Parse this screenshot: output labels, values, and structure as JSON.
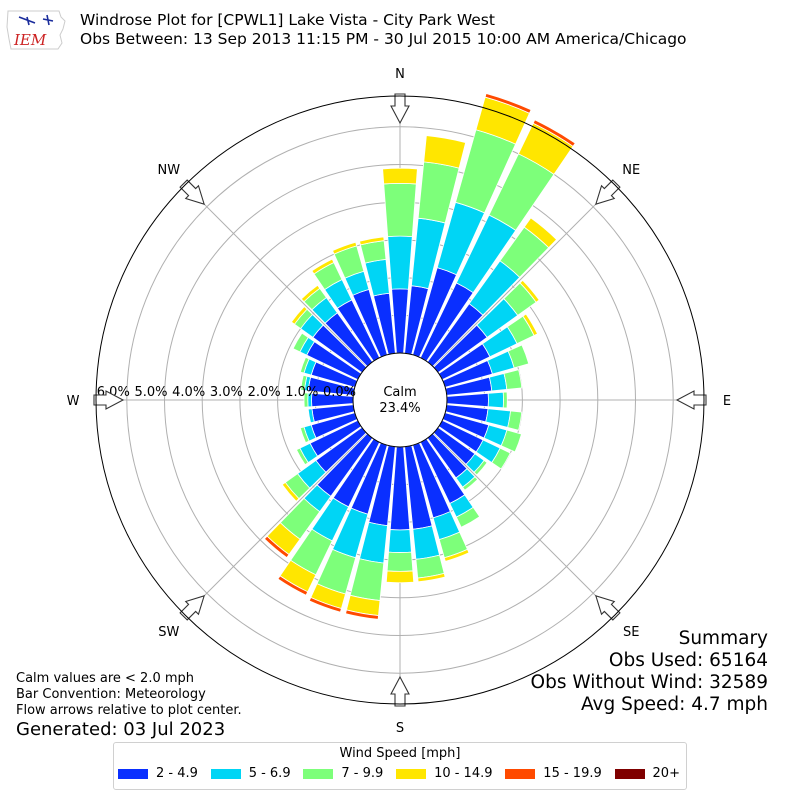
{
  "logo": {
    "text": "IEM",
    "color": "#cc2222",
    "accent": "#1a2c9c"
  },
  "header": {
    "title": "Windrose Plot for [CPWL1] Lake Vista - City Park West",
    "subtitle": "Obs Between: 13 Sep 2013 11:15 PM - 30 Jul 2015 10:00 AM America/Chicago"
  },
  "notes": {
    "line1": "Calm values are < 2.0 mph",
    "line2": "Bar Convention: Meteorology",
    "line3": "Flow arrows relative to plot center.",
    "generated": "Generated: 03 Jul 2023"
  },
  "summary": {
    "heading": "Summary",
    "obs_used": "Obs Used: 65164",
    "obs_without_wind": "Obs Without Wind: 32589",
    "avg_speed": "Avg Speed: 4.7 mph"
  },
  "chart_data": {
    "type": "windrose",
    "calm_label": "Calm",
    "calm_value": "23.4%",
    "direction_labels": [
      "N",
      "NE",
      "E",
      "SE",
      "S",
      "SW",
      "W",
      "NW"
    ],
    "radial_ticks": [
      "0.0%",
      "1.0%",
      "2.0%",
      "3.0%",
      "4.0%",
      "5.0%",
      "6.0%"
    ],
    "rmax": 6.9,
    "legend_title": "Wind Speed [mph]",
    "speed_bins": [
      {
        "label": "2 - 4.9",
        "color": "#0a2fff"
      },
      {
        "label": "5 - 6.9",
        "color": "#00d5f5"
      },
      {
        "label": "7 - 9.9",
        "color": "#7dff7a"
      },
      {
        "label": "10 - 14.9",
        "color": "#ffe600"
      },
      {
        "label": "15 - 19.9",
        "color": "#ff4a00"
      },
      {
        "label": "20+",
        "color": "#7f0000"
      }
    ],
    "directions_deg": [
      0,
      10,
      20,
      30,
      40,
      50,
      60,
      70,
      80,
      90,
      100,
      110,
      120,
      130,
      140,
      150,
      160,
      170,
      180,
      190,
      200,
      210,
      220,
      230,
      240,
      250,
      260,
      270,
      280,
      290,
      300,
      310,
      320,
      330,
      340,
      350
    ],
    "cumulative": [
      [
        1.7,
        3.1,
        4.5,
        4.9,
        4.9,
        4.9
      ],
      [
        1.8,
        3.6,
        5.1,
        5.8,
        5.8,
        5.8
      ],
      [
        2.4,
        4.2,
        6.2,
        7.1,
        7.2,
        7.2
      ],
      [
        2.2,
        4.2,
        6.0,
        6.9,
        7.0,
        7.0
      ],
      [
        1.9,
        3.3,
        4.4,
        4.7,
        4.7,
        4.7
      ],
      [
        1.6,
        2.6,
        3.2,
        3.3,
        3.3,
        3.3
      ],
      [
        1.4,
        2.2,
        2.7,
        2.8,
        2.8,
        2.8
      ],
      [
        1.3,
        1.9,
        2.3,
        2.3,
        2.3,
        2.3
      ],
      [
        1.2,
        1.6,
        2.0,
        2.0,
        2.0,
        2.0
      ],
      [
        1.1,
        1.5,
        1.6,
        1.6,
        1.6,
        1.6
      ],
      [
        1.1,
        1.7,
        2.0,
        2.0,
        2.0,
        2.0
      ],
      [
        1.2,
        1.7,
        2.1,
        2.1,
        2.1,
        2.1
      ],
      [
        1.2,
        1.7,
        2.0,
        2.0,
        2.0,
        2.0
      ],
      [
        1.2,
        1.5,
        1.6,
        1.6,
        1.6,
        1.6
      ],
      [
        1.3,
        1.6,
        1.7,
        1.7,
        1.7,
        1.7
      ],
      [
        1.8,
        2.2,
        2.5,
        2.5,
        2.5,
        2.5
      ],
      [
        2.0,
        2.6,
        3.1,
        3.2,
        3.2,
        3.2
      ],
      [
        2.2,
        3.0,
        3.5,
        3.6,
        3.6,
        3.6
      ],
      [
        2.2,
        2.8,
        3.3,
        3.6,
        3.6,
        3.6
      ],
      [
        2.1,
        3.1,
        4.1,
        4.5,
        4.6,
        4.6
      ],
      [
        1.9,
        3.1,
        4.1,
        4.5,
        4.6,
        4.6
      ],
      [
        1.9,
        2.9,
        3.9,
        4.4,
        4.5,
        4.5
      ],
      [
        1.9,
        2.4,
        3.3,
        3.8,
        3.9,
        3.9
      ],
      [
        1.5,
        2.1,
        2.5,
        2.6,
        2.6,
        2.6
      ],
      [
        1.4,
        1.7,
        1.8,
        1.8,
        1.8,
        1.8
      ],
      [
        1.2,
        1.4,
        1.5,
        1.5,
        1.5,
        1.5
      ],
      [
        1.1,
        1.2,
        1.2,
        1.2,
        1.2,
        1.2
      ],
      [
        1.1,
        1.2,
        1.3,
        1.3,
        1.3,
        1.3
      ],
      [
        1.2,
        1.3,
        1.4,
        1.4,
        1.4,
        1.4
      ],
      [
        1.2,
        1.4,
        1.5,
        1.5,
        1.5,
        1.5
      ],
      [
        1.5,
        1.7,
        1.9,
        1.9,
        1.9,
        1.9
      ],
      [
        1.6,
        2.0,
        2.2,
        2.3,
        2.3,
        2.3
      ],
      [
        1.6,
        2.1,
        2.4,
        2.5,
        2.5,
        2.5
      ],
      [
        1.7,
        2.3,
        2.8,
        2.9,
        2.9,
        2.9
      ],
      [
        1.8,
        2.3,
        3.0,
        3.1,
        3.1,
        3.1
      ],
      [
        1.6,
        2.5,
        3.0,
        3.1,
        3.1,
        3.1
      ]
    ]
  }
}
